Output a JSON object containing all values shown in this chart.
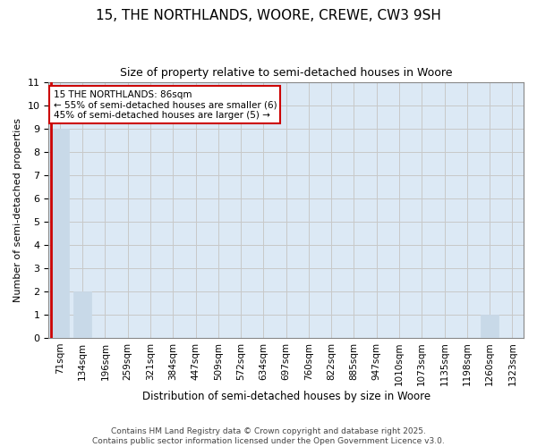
{
  "title": "15, THE NORTHLANDS, WOORE, CREWE, CW3 9SH",
  "subtitle": "Size of property relative to semi-detached houses in Woore",
  "xlabel": "Distribution of semi-detached houses by size in Woore",
  "ylabel": "Number of semi-detached properties",
  "categories": [
    "71sqm",
    "134sqm",
    "196sqm",
    "259sqm",
    "321sqm",
    "384sqm",
    "447sqm",
    "509sqm",
    "572sqm",
    "634sqm",
    "697sqm",
    "760sqm",
    "822sqm",
    "885sqm",
    "947sqm",
    "1010sqm",
    "1073sqm",
    "1135sqm",
    "1198sqm",
    "1260sqm",
    "1323sqm"
  ],
  "values": [
    9,
    2,
    0,
    0,
    0,
    0,
    0,
    0,
    0,
    0,
    0,
    0,
    0,
    0,
    0,
    0,
    0,
    0,
    0,
    1,
    0
  ],
  "bar_color": "#c8d9e8",
  "bar_edge_color": "#a0b8cc",
  "annotation_title": "15 THE NORTHLANDS: 86sqm",
  "annotation_line1": "← 55% of semi-detached houses are smaller (6)",
  "annotation_line2": "45% of semi-detached houses are larger (5) →",
  "annotation_box_facecolor": "#ffffff",
  "annotation_border_color": "#cc0000",
  "subject_line_color": "#cc0000",
  "ylim": [
    0,
    11
  ],
  "yticks": [
    0,
    1,
    2,
    3,
    4,
    5,
    6,
    7,
    8,
    9,
    10,
    11
  ],
  "footer": "Contains HM Land Registry data © Crown copyright and database right 2025.\nContains public sector information licensed under the Open Government Licence v3.0.",
  "grid_color": "#c8c8c8",
  "background_color": "#dce9f5",
  "title_fontsize": 11,
  "subtitle_fontsize": 9
}
